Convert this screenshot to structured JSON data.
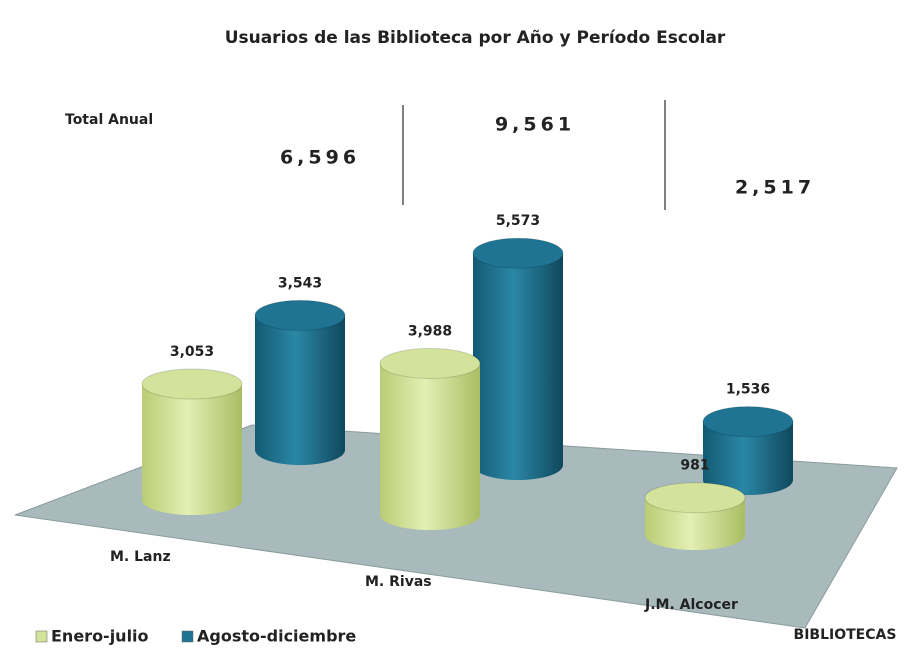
{
  "chart_data": {
    "type": "bar3d",
    "title": "Usuarios de las  Biblioteca por Año y Período Escolar",
    "categories": [
      "M. Lanz",
      "M. Rivas",
      "J.M. Alcocer"
    ],
    "x_label": "BIBLIOTECAS",
    "series": [
      {
        "name": "Enero-julio",
        "color": "#d3e39b",
        "values": [
          3053,
          3988,
          981
        ],
        "value_labels": [
          "3,053",
          "3,988",
          "981"
        ]
      },
      {
        "name": "Agosto-diciembre",
        "color": "#1e7492",
        "values": [
          3543,
          5573,
          1536
        ],
        "value_labels": [
          "3,543",
          "5,573",
          "1,536"
        ]
      }
    ],
    "totals_title": "Total Anual",
    "totals": [
      6596,
      9561,
      2517
    ],
    "totals_labels": [
      "6,596",
      "9,561",
      "2,517"
    ],
    "legend": "bottom-left"
  }
}
